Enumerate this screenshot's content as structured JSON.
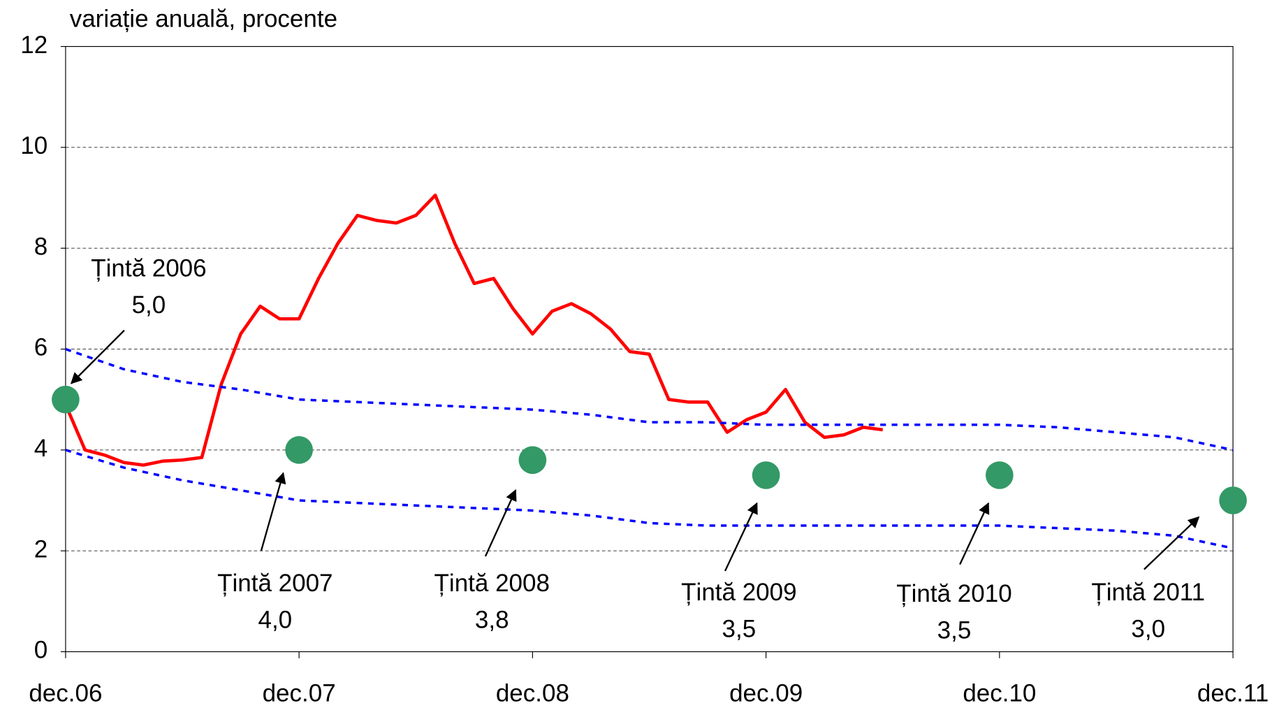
{
  "chart_data": {
    "type": "line",
    "ylabel": "variație anuală, procente",
    "xlim": [
      0,
      60
    ],
    "xticks": [
      {
        "value": 0,
        "label": "dec.06"
      },
      {
        "value": 12,
        "label": "dec.07"
      },
      {
        "value": 24,
        "label": "dec.08"
      },
      {
        "value": 36,
        "label": "dec.09"
      },
      {
        "value": 48,
        "label": "dec.10"
      },
      {
        "value": 60,
        "label": "dec.11"
      }
    ],
    "ylim": [
      0,
      12
    ],
    "yticks": [
      0,
      2,
      4,
      6,
      8,
      10,
      12
    ],
    "grid": true,
    "series": [
      {
        "color": "#ff0000",
        "style": "solid",
        "x": [
          0,
          1,
          2,
          3,
          4,
          5,
          6,
          7,
          8,
          9,
          10,
          11,
          12,
          13,
          14,
          15,
          16,
          17,
          18,
          19,
          20,
          21,
          22,
          23,
          24,
          25,
          26,
          27,
          28,
          29,
          30,
          31,
          32,
          33,
          34,
          35,
          36,
          37,
          38,
          39,
          40,
          41,
          42
        ],
        "values": [
          4.9,
          4.0,
          3.9,
          3.75,
          3.7,
          3.78,
          3.8,
          3.85,
          5.3,
          6.3,
          6.85,
          6.6,
          6.6,
          7.4,
          8.1,
          8.65,
          8.55,
          8.5,
          8.65,
          9.05,
          8.1,
          7.3,
          7.4,
          6.8,
          6.3,
          6.75,
          6.9,
          6.7,
          6.4,
          5.95,
          5.9,
          5.0,
          4.95,
          4.95,
          4.35,
          4.6,
          4.75,
          5.2,
          4.55,
          4.25,
          4.3,
          4.45,
          4.4
        ]
      },
      {
        "color": "#0000ff",
        "style": "dotted",
        "x": [
          0,
          3,
          6,
          9,
          12,
          15,
          18,
          21,
          24,
          27,
          30,
          33,
          36,
          39,
          42,
          45,
          48,
          51,
          54,
          57,
          60
        ],
        "values": [
          6.0,
          5.6,
          5.35,
          5.2,
          5.0,
          4.95,
          4.9,
          4.85,
          4.8,
          4.7,
          4.55,
          4.55,
          4.5,
          4.5,
          4.5,
          4.5,
          4.5,
          4.45,
          4.35,
          4.25,
          4.0
        ]
      },
      {
        "color": "#0000ff",
        "style": "dotted",
        "x": [
          0,
          3,
          6,
          9,
          12,
          15,
          18,
          21,
          24,
          27,
          30,
          33,
          36,
          39,
          42,
          45,
          48,
          51,
          54,
          57,
          60
        ],
        "values": [
          4.0,
          3.65,
          3.4,
          3.2,
          3.0,
          2.95,
          2.9,
          2.85,
          2.8,
          2.7,
          2.55,
          2.5,
          2.5,
          2.5,
          2.5,
          2.5,
          2.5,
          2.45,
          2.4,
          2.3,
          2.05
        ]
      },
      {
        "color": "#339966",
        "style": "marker",
        "x": [
          0,
          12,
          24,
          36,
          48,
          60
        ],
        "values": [
          5.0,
          4.0,
          3.8,
          3.5,
          3.5,
          3.0
        ],
        "value_labels": [
          "5,0",
          "4,0",
          "3,8",
          "3,5",
          "3,5",
          "3,0"
        ],
        "annotations": [
          "Țintă 2006",
          "Țintă 2007",
          "Țintă 2008",
          "Țintă 2009",
          "Țintă 2010",
          "Țintă 2011"
        ]
      }
    ]
  }
}
